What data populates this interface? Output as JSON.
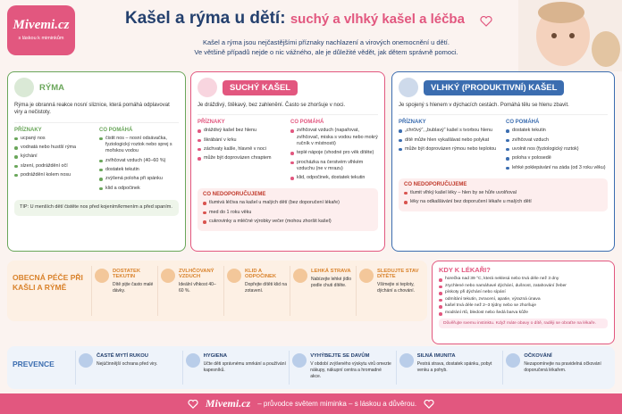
{
  "logo": {
    "name": "Mivemi.cz",
    "tagline": "s láskou k miminkům"
  },
  "header": {
    "title": "Kašel a rýma u dětí:",
    "subtitle": "suchý a vlhký kašel a léčba",
    "intro": [
      "Kašel a rýma jsou nejčastějšími příznaky nachlazení a virových onemocnění u dětí.",
      "Ve většině případů nejde o nic vážného, ale je důležité vědět, jak dětem správně pomoci."
    ]
  },
  "cards": [
    {
      "title": "RÝMA",
      "description": "Rýma je obranná reakce nosní sliznice, která pomáhá odplavovat viry a nečistoty.",
      "symptoms_heading": "PŘÍZNAKY",
      "symptoms": [
        "ucpaný nos",
        "vodnatá nebo hustší rýma",
        "kýchání",
        "slzení, podráždění očí",
        "podráždění kolem nosu"
      ],
      "help_heading": "CO POMÁHÁ",
      "help": [
        "čistit nos – nosní odsávačka, fyziologický roztok nebo sprej s mořskou vodou",
        "zvlhčovat vzduch (40–60 %)",
        "dostatek tekutin",
        "zvýšená poloha při spánku",
        "klid a odpočinek"
      ],
      "tip": "TIP: U menších dětí čistěte nos před kojením/krmením a před spaním."
    },
    {
      "title": "SUCHÝ KAŠEL",
      "description": "Je dráždivý, štěkavý, bez zahlenění. Často se zhoršuje v noci.",
      "symptoms_heading": "PŘÍZNAKY",
      "symptoms": [
        "dráždivý kašel bez hlenu",
        "škrábání v krku",
        "záchvaty kašle, hlavně v noci",
        "může být doprovázen chraptem"
      ],
      "help_heading": "CO POMÁHÁ",
      "help": [
        "zvlhčovat vzduch (napařovat, zvlhčovač, miska s vodou nebo mokrý ručník v místnosti)",
        "teplé nápoje (vhodné pro věk dítěte)",
        "procházka na čerstvém vlhkém vzduchu (ne v mrazu)",
        "klid, odpočinek, dostatek tekutin"
      ],
      "avoid_heading": "CO NEDOPORUČUJEME",
      "avoid": [
        "tlumivá léčiva na kašel u malých dětí (bez doporučení lékaře)",
        "med do 1 roku věku",
        "cukrovinky a mléčné výrobky večer (mohou zhoršit kašel)"
      ]
    },
    {
      "title": "VLHKÝ (PRODUKTIVNÍ) KAŠEL",
      "description": "Je spojený s hlenem v dýchacích cestách. Pomáhá tělu se hlenu zbavit.",
      "symptoms_heading": "PŘÍZNAKY",
      "symptoms": [
        "„chrčivý“, „bublavý“ kašel s tvorbou hlenu",
        "dítě může hlen vykašlávat nebo polykat",
        "může být doprovázen rýmou nebo teplotou"
      ],
      "help_heading": "CO POMÁHÁ",
      "help": [
        "dostatek tekutin",
        "zvlhčovat vzduch",
        "uvolnit nos (fyziologický roztok)",
        "poloha v polosedě",
        "lehké poklepávání na záda (od 3 roku věku)"
      ],
      "avoid_heading": "CO NEDOPORUČUJEME",
      "avoid": [
        "tlumit vlhký kašel léky – hlen by se hůře uvolňoval",
        "léky na odkašlávání bez doporučení lékaře u malých dětí"
      ]
    }
  ],
  "care": {
    "title": "OBECNÁ PÉČE PŘI KAŠLI A RÝMĚ",
    "items": [
      {
        "title": "DOSTATEK TEKUTIN",
        "text": "Dítě pijte často malé dávky."
      },
      {
        "title": "ZVLHČOVANÝ VZDUCH",
        "text": "Ideální vlhkost 40–60 %."
      },
      {
        "title": "KLID A ODPOČINEK",
        "text": "Dopřejte dítěti klid na zotavení."
      },
      {
        "title": "LEHKÁ STRAVA",
        "text": "Nabízejte lehké jídlo podle chuti dítěte."
      },
      {
        "title": "SLEDUJTE STAV DÍTĚTE",
        "text": "Všímejte si teploty, dýchání a chování."
      }
    ]
  },
  "doctor": {
    "title": "KDY K LÉKAŘI?",
    "items": [
      "horečka nad 39 °C, která neklesá nebo trvá déle než 3 dny",
      "zrychlené nebo namáhavé dýchání, dušnost, zatahování žeber",
      "pískoty při dýchání nebo sípání",
      "odmítání tekutin, zvracení, apatie, výrazná únava",
      "kašel trvá déle než 2–3 týdny nebo se zhoršuje",
      "modrání rtů, bledost nebo šedá barva kůže"
    ],
    "note": "Důvěřujte svemu instinktu. Když máte obavy o dítě, raději se obraťte na lékaře."
  },
  "prevention": {
    "title": "PREVENCE",
    "items": [
      {
        "title": "ČASTÉ MYTÍ RUKOU",
        "text": "Nejúčinnější ochrana před viry."
      },
      {
        "title": "HYGIENA",
        "text": "Učte děti správnému smrkání a používání kapesníků."
      },
      {
        "title": "VYHÝBEJTE SE DAVŮM",
        "text": "V období zvýšeného výskytu virů omezte nákupy, nákupní centra a hromadné akce."
      },
      {
        "title": "SILNÁ IMUNITA",
        "text": "Pestrá strava, dostatek spánku, pobyt venku a pohyb."
      },
      {
        "title": "OČKOVÁNÍ",
        "text": "Nezapomínejte na pravidelná očkování doporučená lékařem."
      }
    ]
  },
  "footer": {
    "brand": "Mivemi.cz",
    "text": "– průvodce světem miminka – s láskou a důvěrou."
  }
}
